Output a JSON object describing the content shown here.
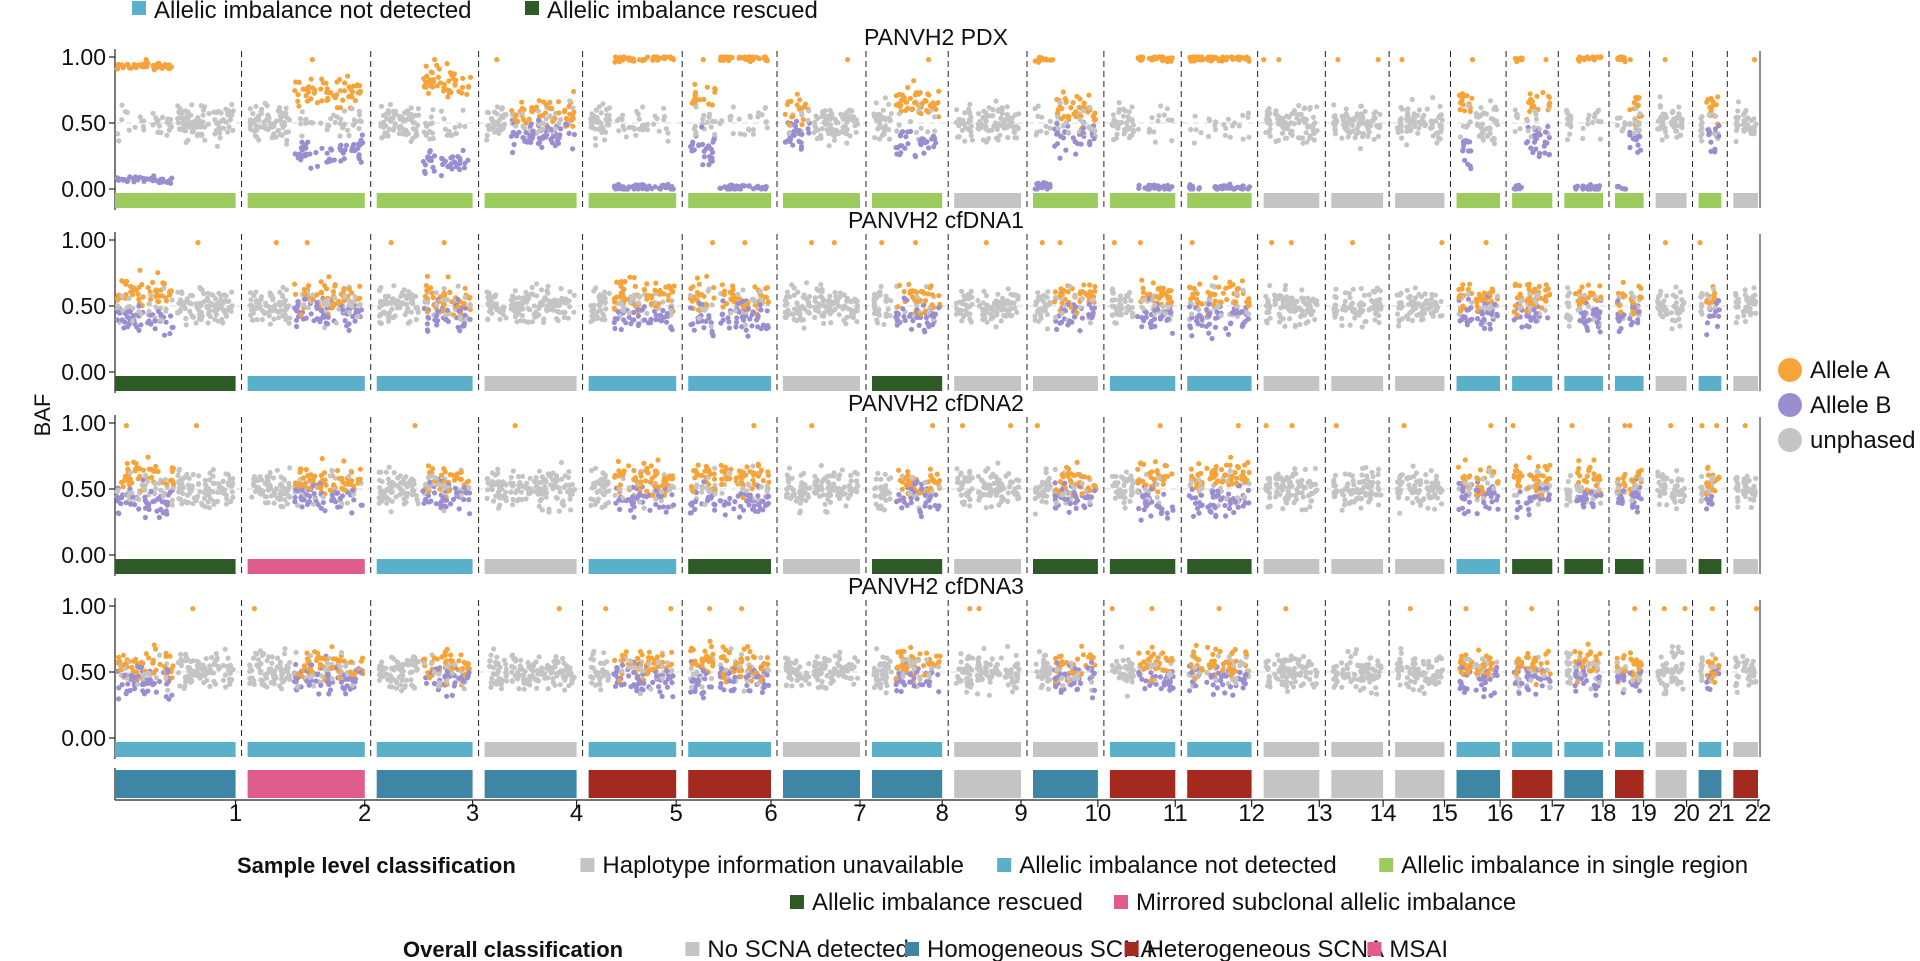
{
  "chart_data": {
    "type": "scatter",
    "ylabel": "BAF",
    "ylim": [
      0,
      1
    ],
    "yticks": [
      "0.00",
      "0.50",
      "1.00"
    ],
    "chromosomes": [
      "1",
      "2",
      "3",
      "4",
      "5",
      "6",
      "7",
      "8",
      "9",
      "10",
      "11",
      "12",
      "13",
      "14",
      "15",
      "16",
      "17",
      "18",
      "19",
      "20",
      "21",
      "22"
    ],
    "chromosome_arms": [
      {
        "chr": "1",
        "p_len": 125,
        "q_len": 124
      },
      {
        "chr": "2",
        "p_len": 93,
        "q_len": 149
      },
      {
        "chr": "3",
        "p_len": 91,
        "q_len": 107
      },
      {
        "chr": "4",
        "p_len": 50,
        "q_len": 140
      },
      {
        "chr": "5",
        "p_len": 48,
        "q_len": 133
      },
      {
        "chr": "6",
        "p_len": 60,
        "q_len": 111
      },
      {
        "chr": "7",
        "p_len": 60,
        "q_len": 99
      },
      {
        "chr": "8",
        "p_len": 45,
        "q_len": 100
      },
      {
        "chr": "9",
        "p_len": 43,
        "q_len": 95
      },
      {
        "chr": "10",
        "p_len": 40,
        "q_len": 94
      },
      {
        "chr": "11",
        "p_len": 53,
        "q_len": 82
      },
      {
        "chr": "12",
        "p_len": 35,
        "q_len": 98
      },
      {
        "chr": "13",
        "p_len": 18,
        "q_len": 97
      },
      {
        "chr": "14",
        "p_len": 17,
        "q_len": 90
      },
      {
        "chr": "15",
        "p_len": 19,
        "q_len": 83
      },
      {
        "chr": "16",
        "p_len": 36,
        "q_len": 54
      },
      {
        "chr": "17",
        "p_len": 25,
        "q_len": 58
      },
      {
        "chr": "18",
        "p_len": 18,
        "q_len": 62
      },
      {
        "chr": "19",
        "p_len": 26,
        "q_len": 33
      },
      {
        "chr": "20",
        "p_len": 28,
        "q_len": 36
      },
      {
        "chr": "21",
        "p_len": 12,
        "q_len": 35
      },
      {
        "chr": "22",
        "p_len": 15,
        "q_len": 36
      }
    ],
    "panels": [
      {
        "title": "PANVH2 PDX",
        "imbalanced_arms": [
          {
            "arm": "1p",
            "major": 0.93
          },
          {
            "arm": "2q",
            "major": 0.72
          },
          {
            "arm": "3q",
            "major": 0.8
          },
          {
            "arm": "4q",
            "major": 0.58
          },
          {
            "arm": "5q",
            "major": 0.99
          },
          {
            "arm": "6p",
            "major": 0.7
          },
          {
            "arm": "6q",
            "major": 0.99
          },
          {
            "arm": "7p",
            "major": 0.58
          },
          {
            "arm": "8q",
            "major": 0.65
          },
          {
            "arm": "10p",
            "major": 0.98
          },
          {
            "arm": "10q",
            "major": 0.6
          },
          {
            "arm": "11q",
            "major": 0.99
          },
          {
            "arm": "12p",
            "major": 0.99
          },
          {
            "arm": "12q",
            "major": 0.99
          },
          {
            "arm": "16p",
            "major": 0.7
          },
          {
            "arm": "17p",
            "major": 0.99
          },
          {
            "arm": "17q",
            "major": 0.65
          },
          {
            "arm": "18q",
            "major": 0.99
          },
          {
            "arm": "19p",
            "major": 0.99
          },
          {
            "arm": "19q",
            "major": 0.6
          },
          {
            "arm": "21q",
            "major": 0.6
          }
        ],
        "classification": [
          {
            "chr": "1",
            "category": "ai_single"
          },
          {
            "chr": "2",
            "category": "ai_single"
          },
          {
            "chr": "3",
            "category": "ai_single"
          },
          {
            "chr": "4",
            "category": "ai_single"
          },
          {
            "chr": "5",
            "category": "ai_single"
          },
          {
            "chr": "6",
            "category": "ai_single"
          },
          {
            "chr": "7",
            "category": "ai_single"
          },
          {
            "chr": "8",
            "category": "ai_single"
          },
          {
            "chr": "10",
            "category": "ai_single"
          },
          {
            "chr": "11",
            "category": "ai_single"
          },
          {
            "chr": "12",
            "category": "ai_single"
          },
          {
            "chr": "16",
            "category": "ai_single"
          },
          {
            "chr": "17",
            "category": "ai_single"
          },
          {
            "chr": "18",
            "category": "ai_single"
          },
          {
            "chr": "19",
            "category": "ai_single"
          },
          {
            "chr": "21",
            "category": "ai_single"
          }
        ]
      },
      {
        "title": "PANVH2 cfDNA1",
        "imbalanced_arms": [
          {
            "arm": "1p",
            "major": 0.6
          },
          {
            "arm": "2q",
            "major": 0.56
          },
          {
            "arm": "3q",
            "major": 0.56
          },
          {
            "arm": "5q",
            "major": 0.58
          },
          {
            "arm": "6p",
            "major": 0.58
          },
          {
            "arm": "6q",
            "major": 0.58
          },
          {
            "arm": "8q",
            "major": 0.56
          },
          {
            "arm": "10q",
            "major": 0.56
          },
          {
            "arm": "11q",
            "major": 0.58
          },
          {
            "arm": "12p",
            "major": 0.58
          },
          {
            "arm": "12q",
            "major": 0.58
          },
          {
            "arm": "16p",
            "major": 0.56
          },
          {
            "arm": "16q",
            "major": 0.56
          },
          {
            "arm": "17p",
            "major": 0.56
          },
          {
            "arm": "17q",
            "major": 0.56
          },
          {
            "arm": "18q",
            "major": 0.58
          },
          {
            "arm": "19p",
            "major": 0.58
          },
          {
            "arm": "19q",
            "major": 0.56
          },
          {
            "arm": "21q",
            "major": 0.56
          }
        ],
        "classification": [
          {
            "chr": "1",
            "category": "ai_rescued"
          },
          {
            "chr": "2",
            "category": "ai_not_detected"
          },
          {
            "chr": "3",
            "category": "ai_not_detected"
          },
          {
            "chr": "5",
            "category": "ai_not_detected"
          },
          {
            "chr": "6",
            "category": "ai_not_detected"
          },
          {
            "chr": "8",
            "category": "ai_rescued"
          },
          {
            "chr": "11",
            "category": "ai_not_detected"
          },
          {
            "chr": "12",
            "category": "ai_not_detected"
          },
          {
            "chr": "16",
            "category": "ai_not_detected"
          },
          {
            "chr": "17",
            "category": "ai_not_detected"
          },
          {
            "chr": "18",
            "category": "ai_not_detected"
          },
          {
            "chr": "19",
            "category": "ai_not_detected"
          },
          {
            "chr": "21",
            "category": "ai_not_detected"
          }
        ]
      },
      {
        "title": "PANVH2 cfDNA2",
        "imbalanced_arms": [
          {
            "arm": "1p",
            "major": 0.6
          },
          {
            "arm": "2q",
            "major": 0.56
          },
          {
            "arm": "3q",
            "major": 0.56
          },
          {
            "arm": "5q",
            "major": 0.58
          },
          {
            "arm": "6p",
            "major": 0.58
          },
          {
            "arm": "6q",
            "major": 0.6
          },
          {
            "arm": "8q",
            "major": 0.56
          },
          {
            "arm": "10q",
            "major": 0.56
          },
          {
            "arm": "11q",
            "major": 0.6
          },
          {
            "arm": "12p",
            "major": 0.6
          },
          {
            "arm": "12q",
            "major": 0.6
          },
          {
            "arm": "16p",
            "major": 0.56
          },
          {
            "arm": "16q",
            "major": 0.56
          },
          {
            "arm": "17p",
            "major": 0.58
          },
          {
            "arm": "17q",
            "major": 0.58
          },
          {
            "arm": "18q",
            "major": 0.58
          },
          {
            "arm": "19p",
            "major": 0.58
          },
          {
            "arm": "19q",
            "major": 0.56
          },
          {
            "arm": "21q",
            "major": 0.56
          }
        ],
        "classification": [
          {
            "chr": "1",
            "category": "ai_rescued"
          },
          {
            "chr": "2",
            "category": "mirrored"
          },
          {
            "chr": "3",
            "category": "ai_not_detected"
          },
          {
            "chr": "5",
            "category": "ai_not_detected"
          },
          {
            "chr": "6",
            "category": "ai_rescued"
          },
          {
            "chr": "8",
            "category": "ai_rescued"
          },
          {
            "chr": "10",
            "category": "ai_rescued"
          },
          {
            "chr": "11",
            "category": "ai_rescued"
          },
          {
            "chr": "12",
            "category": "ai_rescued"
          },
          {
            "chr": "16",
            "category": "ai_not_detected"
          },
          {
            "chr": "17",
            "category": "ai_rescued"
          },
          {
            "chr": "18",
            "category": "ai_rescued"
          },
          {
            "chr": "19",
            "category": "ai_rescued"
          },
          {
            "chr": "21",
            "category": "ai_rescued"
          }
        ]
      },
      {
        "title": "PANVH2 cfDNA3",
        "imbalanced_arms": [
          {
            "arm": "1p",
            "major": 0.56
          },
          {
            "arm": "2q",
            "major": 0.55
          },
          {
            "arm": "3q",
            "major": 0.55
          },
          {
            "arm": "5q",
            "major": 0.56
          },
          {
            "arm": "6p",
            "major": 0.56
          },
          {
            "arm": "6q",
            "major": 0.56
          },
          {
            "arm": "8q",
            "major": 0.55
          },
          {
            "arm": "10q",
            "major": 0.55
          },
          {
            "arm": "11q",
            "major": 0.56
          },
          {
            "arm": "12p",
            "major": 0.56
          },
          {
            "arm": "12q",
            "major": 0.56
          },
          {
            "arm": "16p",
            "major": 0.55
          },
          {
            "arm": "16q",
            "major": 0.55
          },
          {
            "arm": "17p",
            "major": 0.55
          },
          {
            "arm": "17q",
            "major": 0.55
          },
          {
            "arm": "18q",
            "major": 0.55
          },
          {
            "arm": "19p",
            "major": 0.55
          },
          {
            "arm": "19q",
            "major": 0.55
          },
          {
            "arm": "21q",
            "major": 0.55
          }
        ],
        "classification": [
          {
            "chr": "1",
            "category": "ai_not_detected"
          },
          {
            "chr": "2",
            "category": "ai_not_detected"
          },
          {
            "chr": "3",
            "category": "ai_not_detected"
          },
          {
            "chr": "5",
            "category": "ai_not_detected"
          },
          {
            "chr": "6",
            "category": "ai_not_detected"
          },
          {
            "chr": "8",
            "category": "ai_not_detected"
          },
          {
            "chr": "11",
            "category": "ai_not_detected"
          },
          {
            "chr": "12",
            "category": "ai_not_detected"
          },
          {
            "chr": "16",
            "category": "ai_not_detected"
          },
          {
            "chr": "17",
            "category": "ai_not_detected"
          },
          {
            "chr": "18",
            "category": "ai_not_detected"
          },
          {
            "chr": "19",
            "category": "ai_not_detected"
          },
          {
            "chr": "21",
            "category": "ai_not_detected"
          }
        ]
      }
    ],
    "overall_classification": [
      {
        "chr": "1",
        "category": "homogeneous"
      },
      {
        "chr": "2",
        "category": "msai"
      },
      {
        "chr": "3",
        "category": "homogeneous"
      },
      {
        "chr": "4",
        "category": "homogeneous"
      },
      {
        "chr": "5",
        "category": "heterogeneous"
      },
      {
        "chr": "6",
        "category": "heterogeneous"
      },
      {
        "chr": "7",
        "category": "homogeneous"
      },
      {
        "chr": "8",
        "category": "homogeneous"
      },
      {
        "chr": "10",
        "category": "homogeneous"
      },
      {
        "chr": "11",
        "category": "heterogeneous"
      },
      {
        "chr": "12",
        "category": "heterogeneous"
      },
      {
        "chr": "16",
        "category": "homogeneous"
      },
      {
        "chr": "17",
        "category": "heterogeneous"
      },
      {
        "chr": "18",
        "category": "homogeneous"
      },
      {
        "chr": "19",
        "category": "heterogeneous"
      },
      {
        "chr": "21",
        "category": "homogeneous"
      },
      {
        "chr": "22",
        "category": "heterogeneous"
      }
    ],
    "top_legend": [
      {
        "label": "Allelic imbalance not detected",
        "color": "#5ab0c8"
      },
      {
        "label": "Allelic imbalance rescued",
        "color": "#2e5a26"
      }
    ],
    "allele_legend": [
      {
        "label": "Allele A",
        "color": "#f6a43a"
      },
      {
        "label": "Allele B",
        "color": "#9b8ed0"
      },
      {
        "label": "unphased",
        "color": "#c4c4c4"
      }
    ],
    "sample_legend": {
      "title": "Sample level classification",
      "row1": [
        {
          "label": "Haplotype information unavailable",
          "color": "#c4c4c4"
        },
        {
          "label": "Allelic imbalance not detected",
          "color": "#5ab0c8"
        },
        {
          "label": "Allelic imbalance in single region",
          "color": "#9ccc5e"
        }
      ],
      "row2": [
        {
          "label": "Allelic imbalance rescued",
          "color": "#2e5a26"
        },
        {
          "label": "Mirrored subclonal allelic imbalance",
          "color": "#e05c8c"
        }
      ]
    },
    "overall_legend": {
      "title": "Overall classification",
      "items": [
        {
          "label": "No SCNA detected",
          "color": "#c4c4c4"
        },
        {
          "label": "Homogeneous SCNA",
          "color": "#3e86a4"
        },
        {
          "label": "Heterogeneous SCNA",
          "color": "#a42a20"
        },
        {
          "label": "MSAI",
          "color": "#e05c8c"
        }
      ]
    },
    "category_colors": {
      "unavailable": "#c4c4c4",
      "ai_not_detected": "#5ab0c8",
      "ai_single": "#9ccc5e",
      "ai_rescued": "#2e5a26",
      "mirrored": "#e05c8c",
      "none": "#c4c4c4",
      "homogeneous": "#3e86a4",
      "heterogeneous": "#a42a20",
      "msai": "#e05c8c"
    }
  }
}
